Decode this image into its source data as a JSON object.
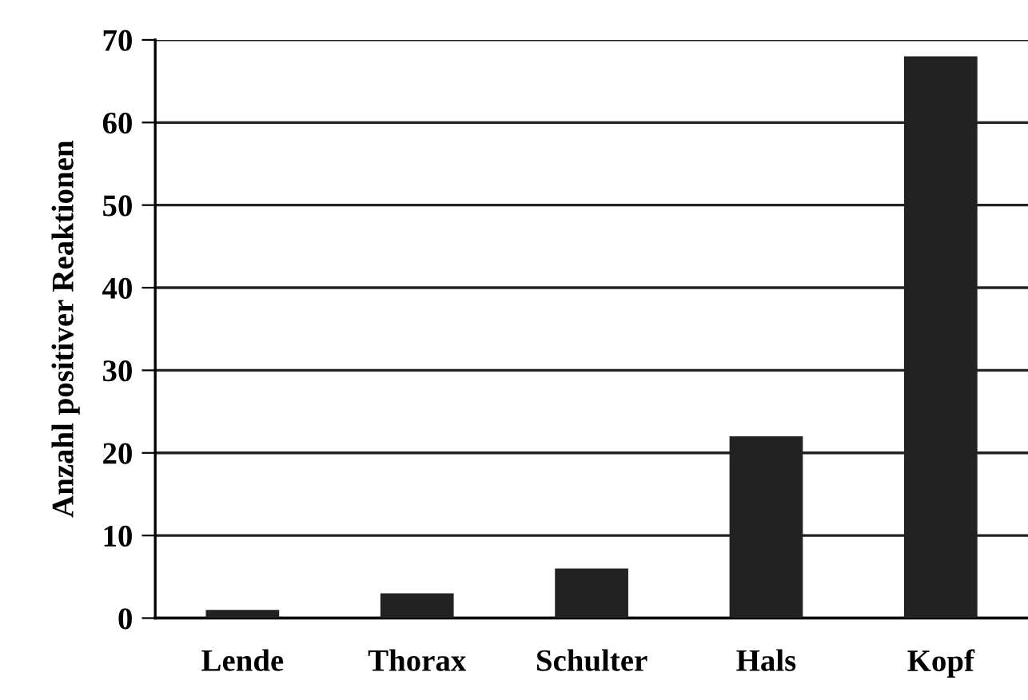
{
  "chart_data": {
    "type": "bar",
    "ylabel": "Anzahl positiver Reaktionen",
    "categories": [
      "Lende",
      "Thorax",
      "Schulter",
      "Hals",
      "Kopf"
    ],
    "values": [
      1,
      3,
      6,
      22,
      68
    ],
    "color": "#222222",
    "ylim": [
      0,
      70
    ],
    "yticks": [
      0,
      10,
      20,
      30,
      40,
      50,
      60,
      70
    ],
    "grid": "y"
  }
}
